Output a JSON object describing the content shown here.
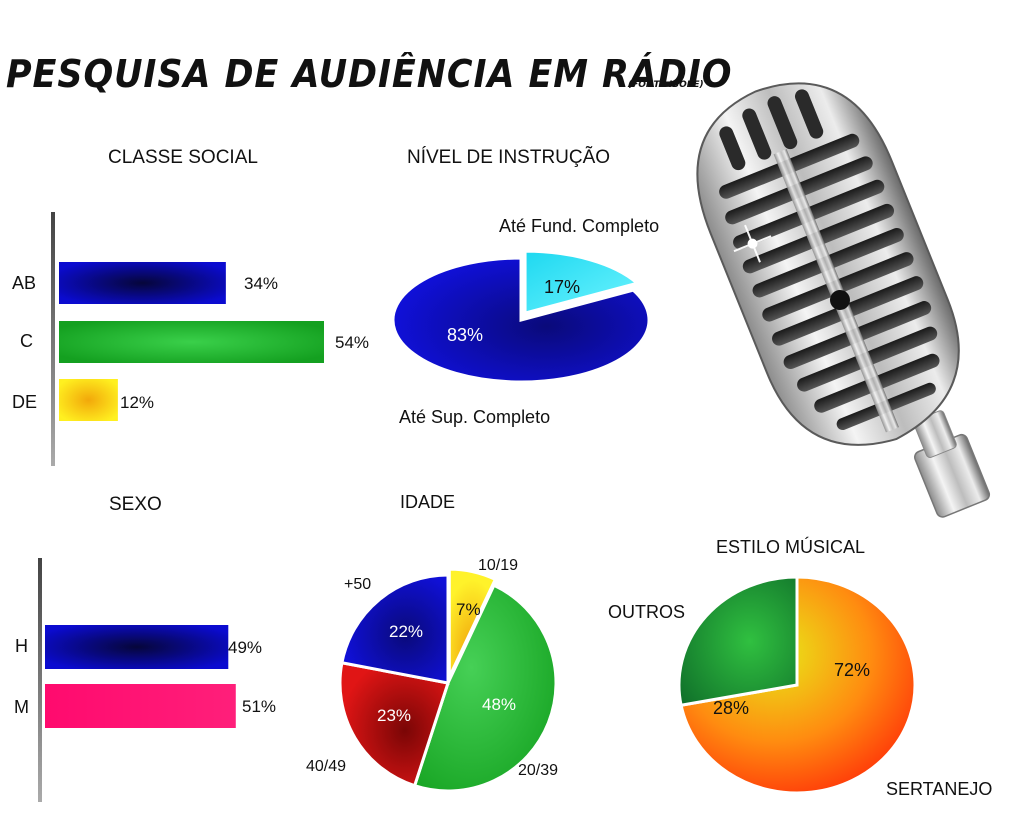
{
  "header": {
    "title": "PESQUISA DE AUDIÊNCIA EM RÁDIO",
    "source": "(FONTE IBOPE)"
  },
  "colors": {
    "blue": "#0a0ab8",
    "green": "#22b22a",
    "yellow": "#f5dd0a",
    "pink": "#ff0a6e",
    "cyan": "#22e8f5",
    "red": "#c40e0e",
    "orange": "#ff7a0a",
    "darkgreen": "#1a8a30"
  },
  "chart_data": [
    {
      "id": "classe_social",
      "type": "bar",
      "orientation": "horizontal",
      "title": "CLASSE SOCIAL",
      "categories": [
        "AB",
        "C",
        "DE"
      ],
      "values": [
        34,
        54,
        12
      ],
      "value_labels": [
        "34%",
        "54%",
        "12%"
      ],
      "xlim": [
        0,
        54
      ],
      "unit": "%"
    },
    {
      "id": "nivel_instrucao",
      "type": "pie",
      "title": "NÍVEL DE INSTRUÇÃO",
      "categories": [
        "Até Fund. Completo",
        "Até Sup. Completo"
      ],
      "values": [
        17,
        83
      ],
      "value_labels": [
        "17%",
        "83%"
      ],
      "unit": "%"
    },
    {
      "id": "sexo",
      "type": "bar",
      "orientation": "horizontal",
      "title": "SEXO",
      "categories": [
        "H",
        "M"
      ],
      "values": [
        49,
        51
      ],
      "value_labels": [
        "49%",
        "51%"
      ],
      "xlim": [
        0,
        54
      ],
      "unit": "%"
    },
    {
      "id": "idade",
      "type": "pie",
      "title": "IDADE",
      "categories": [
        "10/19",
        "20/39",
        "40/49",
        "+50"
      ],
      "values": [
        7,
        48,
        23,
        22
      ],
      "value_labels": [
        "7%",
        "48%",
        "23%",
        "22%"
      ],
      "unit": "%"
    },
    {
      "id": "estilo_musical",
      "type": "pie",
      "title": "ESTILO MÚSICAL",
      "categories": [
        "SERTANEJO",
        "OUTROS"
      ],
      "values": [
        72,
        28
      ],
      "value_labels": [
        "72%",
        "28%"
      ],
      "unit": "%"
    }
  ]
}
